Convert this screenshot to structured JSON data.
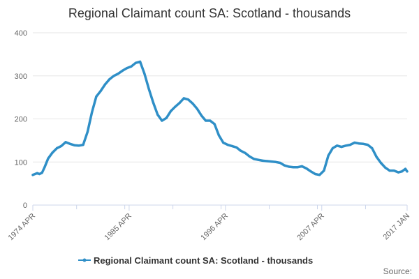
{
  "chart_data": {
    "type": "line",
    "title": "Regional Claimant count SA: Scotland - thousands",
    "xlabel": "",
    "ylabel": "",
    "ylim": [
      0,
      400
    ],
    "y_ticks": [
      "0",
      "100",
      "200",
      "300",
      "400"
    ],
    "x_range": [
      1974.25,
      2017.0
    ],
    "x_ticks": [
      {
        "label": "1974 APR",
        "x": 1974.25
      },
      {
        "label": "1985 APR",
        "x": 1985.25
      },
      {
        "label": "1996 APR",
        "x": 1996.25
      },
      {
        "label": "2007 APR",
        "x": 2007.25
      },
      {
        "label": "2017 JAN",
        "x": 2017.0
      }
    ],
    "grid": true,
    "legend_position": "bottom",
    "colors": {
      "series": "#2f8fc7",
      "grid": "#e6e6e6",
      "axis": "#ccd6eb"
    },
    "series": [
      {
        "name": "Regional Claimant count SA: Scotland - thousands",
        "x": [
          1974.25,
          1974.75,
          1975.0,
          1975.3,
          1975.6,
          1976.0,
          1976.5,
          1977.0,
          1977.5,
          1978.0,
          1978.5,
          1979.0,
          1979.5,
          1980.0,
          1980.5,
          1981.0,
          1981.5,
          1982.0,
          1982.5,
          1983.0,
          1983.5,
          1984.0,
          1984.5,
          1985.0,
          1985.5,
          1986.0,
          1986.5,
          1987.0,
          1987.5,
          1988.0,
          1988.5,
          1989.0,
          1989.5,
          1990.0,
          1990.5,
          1991.0,
          1991.5,
          1992.0,
          1992.5,
          1993.0,
          1993.5,
          1994.0,
          1994.5,
          1995.0,
          1995.5,
          1996.0,
          1996.5,
          1997.0,
          1997.5,
          1998.0,
          1998.5,
          1999.0,
          1999.5,
          2000.0,
          2000.5,
          2001.0,
          2001.5,
          2002.0,
          2002.5,
          2003.0,
          2003.5,
          2004.0,
          2004.5,
          2005.0,
          2005.5,
          2006.0,
          2006.5,
          2007.0,
          2007.5,
          2008.0,
          2008.5,
          2009.0,
          2009.5,
          2010.0,
          2010.5,
          2011.0,
          2011.5,
          2012.0,
          2012.5,
          2013.0,
          2013.5,
          2014.0,
          2014.5,
          2015.0,
          2015.5,
          2016.0,
          2016.4,
          2016.8,
          2017.0
        ],
        "values": [
          70,
          74,
          72,
          75,
          88,
          108,
          122,
          132,
          137,
          146,
          142,
          139,
          138,
          140,
          170,
          215,
          252,
          265,
          280,
          292,
          300,
          305,
          312,
          318,
          322,
          330,
          333,
          305,
          270,
          238,
          210,
          196,
          202,
          218,
          228,
          237,
          248,
          245,
          236,
          224,
          208,
          196,
          196,
          188,
          162,
          145,
          140,
          137,
          134,
          126,
          121,
          113,
          107,
          105,
          103,
          102,
          101,
          100,
          98,
          92,
          89,
          88,
          88,
          90,
          85,
          78,
          72,
          70,
          80,
          115,
          132,
          138,
          135,
          138,
          140,
          145,
          143,
          142,
          140,
          132,
          112,
          98,
          87,
          80,
          80,
          76,
          78,
          84,
          78
        ]
      }
    ]
  },
  "legend": {
    "label": "Regional Claimant count SA: Scotland - thousands"
  },
  "credits": {
    "label": "Source:"
  }
}
